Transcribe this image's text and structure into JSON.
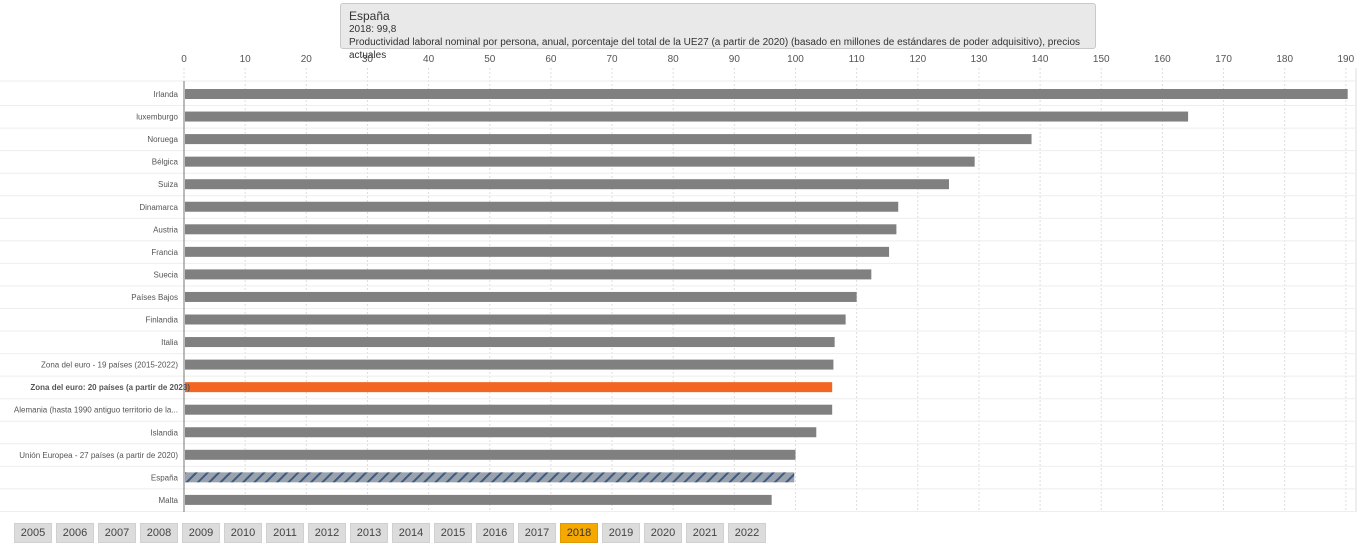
{
  "tooltip": {
    "country": "España",
    "value_line": "2018: 99,8",
    "description": "Productividad laboral nominal por persona, anual, porcentaje del total de la UE27 (a partir de 2020) (basado en millones de estándares de poder adquisitivo), precios actuales"
  },
  "chart_data": {
    "type": "bar",
    "orientation": "horizontal",
    "title": "",
    "xlim": [
      0,
      190
    ],
    "x_ticks": [
      0,
      10,
      20,
      30,
      40,
      50,
      60,
      70,
      80,
      90,
      100,
      110,
      120,
      130,
      140,
      150,
      160,
      170,
      180,
      190
    ],
    "categories": [
      "Irlanda",
      "luxemburgo",
      "Noruega",
      "Bélgica",
      "Suiza",
      "Dinamarca",
      "Austria",
      "Francia",
      "Suecia",
      "Países Bajos",
      "Finlandia",
      "Italia",
      "Zona del euro - 19 países (2015-2022)",
      "Zona del euro: 20 países (a partir de 2023)",
      "Alemania (hasta 1990 antiguo territorio de la...",
      "Islandia",
      "Unión Europea - 27 países (a partir de 2020)",
      "España",
      "Malta"
    ],
    "values": [
      190.3,
      164.2,
      138.6,
      129.3,
      125.1,
      116.8,
      116.5,
      115.3,
      112.4,
      110.0,
      108.2,
      106.4,
      106.2,
      106.0,
      106.0,
      103.4,
      100.0,
      99.8,
      96.1
    ],
    "highlight": {
      "Zona del euro: 20 países (a partir de 2023)": "orange",
      "España": "hatched"
    },
    "colors": {
      "default": "#808080",
      "orange": "#f26522",
      "hatch_fg": "#3d5a80",
      "hatch_bg": "#9aa3ad"
    }
  },
  "years": {
    "items": [
      "2005",
      "2006",
      "2007",
      "2008",
      "2009",
      "2010",
      "2011",
      "2012",
      "2013",
      "2014",
      "2015",
      "2016",
      "2017",
      "2018",
      "2019",
      "2020",
      "2021",
      "2022"
    ],
    "selected": "2018"
  }
}
